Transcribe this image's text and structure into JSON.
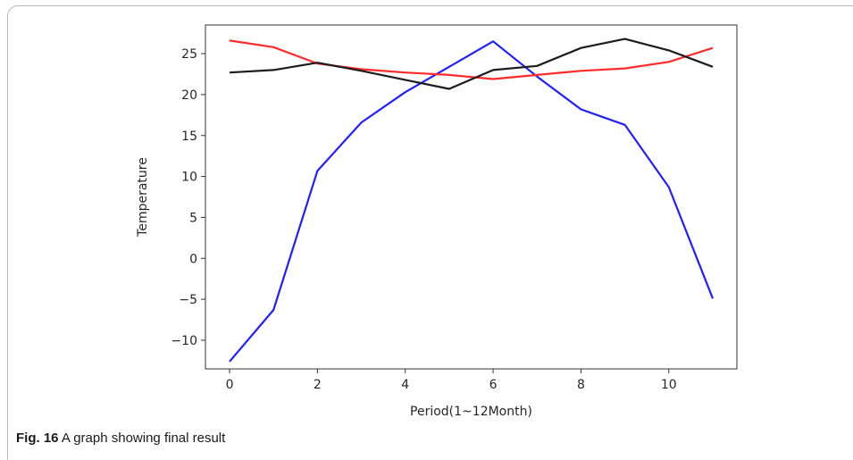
{
  "caption": {
    "label": "Fig. 16",
    "text": "A graph showing final result"
  },
  "chart_data": {
    "type": "line",
    "title": "",
    "xlabel": "Period(1~12Month)",
    "ylabel": "Temperature",
    "xlim": [
      -0.55,
      11.55
    ],
    "ylim": [
      -13.5,
      28.5
    ],
    "xticks": [
      0,
      2,
      4,
      6,
      8,
      10
    ],
    "yticks": [
      -10,
      -5,
      0,
      5,
      10,
      15,
      20,
      25
    ],
    "grid": false,
    "x": [
      0,
      1,
      2,
      3,
      4,
      5,
      6,
      7,
      8,
      9,
      10,
      11
    ],
    "series": [
      {
        "color": "#2020ff",
        "values": [
          -12.6,
          -6.3,
          10.7,
          16.6,
          20.3,
          23.4,
          26.5,
          22.2,
          18.2,
          16.3,
          8.7,
          -4.9
        ]
      },
      {
        "color": "#ff2a2a",
        "values": [
          26.6,
          25.8,
          23.8,
          23.1,
          22.7,
          22.4,
          21.9,
          22.4,
          22.9,
          23.2,
          24.0,
          25.7
        ]
      },
      {
        "color": "#1c1c1c",
        "values": [
          22.7,
          23.0,
          23.9,
          22.9,
          21.8,
          20.7,
          23.0,
          23.5,
          25.7,
          26.8,
          25.4,
          23.4
        ]
      }
    ]
  }
}
